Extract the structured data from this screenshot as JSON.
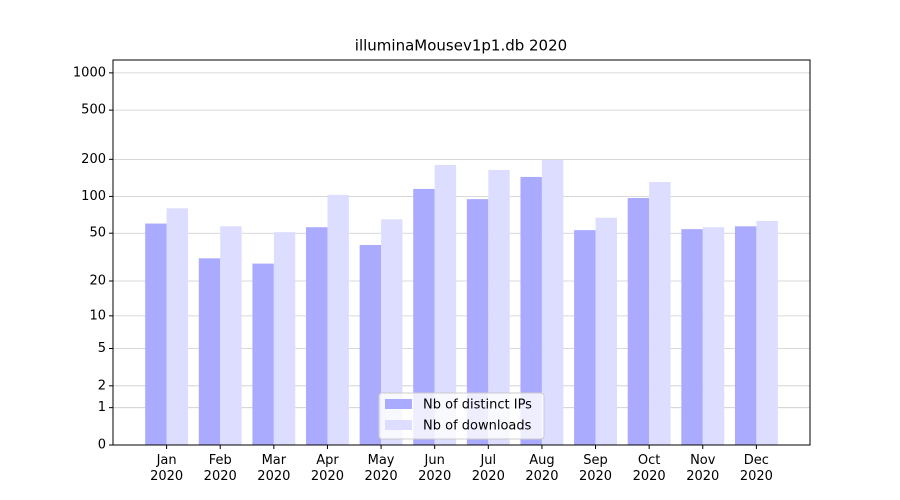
{
  "chart_data": {
    "type": "bar",
    "title": "illuminaMousev1p1.db 2020",
    "categories": [
      "Jan\n2020",
      "Feb\n2020",
      "Mar\n2020",
      "Apr\n2020",
      "May\n2020",
      "Jun\n2020",
      "Jul\n2020",
      "Aug\n2020",
      "Sep\n2020",
      "Oct\n2020",
      "Nov\n2020",
      "Dec\n2020"
    ],
    "series": [
      {
        "name": "Nb of distinct IPs",
        "color": "#aaaaff",
        "values": [
          60,
          31,
          28,
          56,
          40,
          115,
          95,
          144,
          53,
          97,
          54,
          57
        ]
      },
      {
        "name": "Nb of downloads",
        "color": "#ddddff",
        "values": [
          80,
          57,
          51,
          103,
          65,
          180,
          164,
          198,
          67,
          131,
          56,
          63
        ]
      }
    ],
    "yscale": "log1p",
    "ylim": [
      0,
      1270
    ],
    "yticks": [
      0,
      1,
      2,
      5,
      10,
      20,
      50,
      100,
      200,
      500,
      1000
    ],
    "grid": true,
    "legend": "lower center"
  }
}
